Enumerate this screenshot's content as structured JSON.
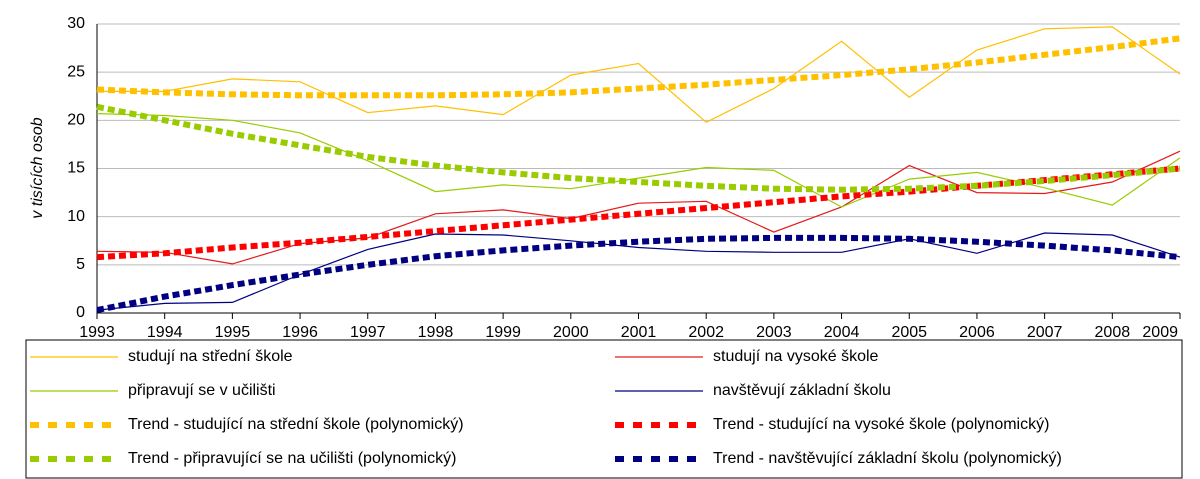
{
  "chart_data": {
    "type": "line",
    "y_label": "v tisících osob",
    "categories": [
      "1993",
      "1994",
      "1995",
      "1996",
      "1997",
      "1998",
      "1999",
      "2000",
      "2001",
      "2002",
      "2003",
      "2004",
      "2005",
      "2006",
      "2007",
      "2008",
      "2009"
    ],
    "series": [
      {
        "name": "studují na střední škole",
        "color": "#ffc000",
        "style": "solid",
        "values": [
          23.0,
          23.0,
          24.3,
          24.0,
          20.8,
          21.5,
          20.6,
          24.7,
          25.9,
          19.8,
          23.3,
          28.2,
          22.4,
          27.3,
          29.5,
          29.7,
          24.8
        ]
      },
      {
        "name": "studují na vysoké škole",
        "color": "#e31a1c",
        "style": "solid",
        "values": [
          6.4,
          6.3,
          5.1,
          7.2,
          7.8,
          10.3,
          10.7,
          9.8,
          11.4,
          11.6,
          8.4,
          11.0,
          15.3,
          12.5,
          12.4,
          13.6,
          16.8
        ]
      },
      {
        "name": "připravují se v učilišti",
        "color": "#99cc00",
        "style": "solid",
        "values": [
          20.7,
          20.5,
          20.0,
          18.7,
          15.8,
          12.6,
          13.3,
          12.9,
          14.0,
          15.1,
          14.8,
          11.0,
          13.9,
          14.6,
          13.0,
          11.2,
          16.1
        ]
      },
      {
        "name": "navštěvují základní školu",
        "color": "#000080",
        "style": "solid",
        "values": [
          0.3,
          1.0,
          1.1,
          4.0,
          6.6,
          8.2,
          8.1,
          7.5,
          6.8,
          6.4,
          6.3,
          6.3,
          7.7,
          6.2,
          8.3,
          8.1,
          5.8
        ]
      },
      {
        "name": "Trend - studující na střední škole (polynomický)",
        "color": "#ffc000",
        "style": "dashed",
        "values": [
          23.2,
          22.9,
          22.7,
          22.6,
          22.6,
          22.6,
          22.7,
          22.9,
          23.3,
          23.7,
          24.2,
          24.7,
          25.3,
          26.0,
          26.8,
          27.6,
          28.5
        ]
      },
      {
        "name": "Trend - studující na vysoké škole (polynomický)",
        "color": "#ff0000",
        "style": "dashed",
        "values": [
          5.8,
          6.2,
          6.8,
          7.3,
          7.9,
          8.5,
          9.1,
          9.7,
          10.3,
          10.9,
          11.5,
          12.1,
          12.6,
          13.2,
          13.8,
          14.4,
          15.0
        ]
      },
      {
        "name": "Trend - připravující se na učilišti (polynomický)",
        "color": "#99cc00",
        "style": "dashed",
        "values": [
          21.4,
          20.0,
          18.6,
          17.4,
          16.2,
          15.3,
          14.6,
          14.0,
          13.6,
          13.2,
          12.9,
          12.8,
          12.9,
          13.2,
          13.7,
          14.3,
          15.0
        ]
      },
      {
        "name": "Trend - navštěvující základní školu (polynomický)",
        "color": "#000080",
        "style": "dashed",
        "values": [
          0.3,
          1.7,
          2.9,
          4.0,
          5.0,
          5.9,
          6.5,
          7.0,
          7.4,
          7.7,
          7.8,
          7.8,
          7.7,
          7.4,
          7.0,
          6.5,
          5.8
        ]
      }
    ],
    "ylim": [
      0,
      30
    ],
    "yticks": [
      0,
      5,
      10,
      15,
      20,
      25,
      30
    ],
    "grid": true,
    "legend": "bottom"
  }
}
